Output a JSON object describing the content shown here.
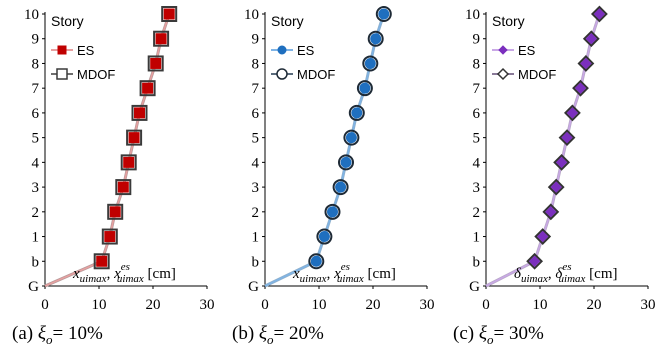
{
  "chart_data": [
    {
      "type": "line",
      "panel": "a",
      "story_label": "Story",
      "y_categories": [
        "G",
        "b",
        "1",
        "2",
        "3",
        "4",
        "5",
        "6",
        "7",
        "8",
        "9",
        "10"
      ],
      "x_ticks": [
        "0",
        "10",
        "20",
        "30"
      ],
      "xlim": [
        0,
        30
      ],
      "x_label": {
        "v1": "x",
        "s1": "uimax",
        "sep": ",",
        "v2": "x",
        "sup2": "es",
        "s2": "uimax",
        "unit": "[cm]"
      },
      "caption": {
        "prefix": "(a)",
        "sym": "ξ",
        "sub": "o",
        "eq": "=",
        "val": "10%"
      },
      "marker": "square",
      "colors": {
        "es_fill": "#C00000",
        "es_line": "#E8A0A0",
        "mdof_stroke": "#3A3A3A",
        "mdof_line": "#6E6E6E",
        "base_line": "#B89A9A"
      },
      "series": [
        {
          "name": "ES",
          "x": [
            0,
            10.5,
            12,
            13,
            14.5,
            15.5,
            16.5,
            17.5,
            19,
            20.5,
            21.5,
            23
          ]
        },
        {
          "name": "MDOF",
          "x": [
            0,
            10.5,
            12,
            13,
            14.5,
            15.5,
            16.5,
            17.5,
            19,
            20.5,
            21.5,
            23
          ]
        }
      ]
    },
    {
      "type": "line",
      "panel": "b",
      "story_label": "Story",
      "y_categories": [
        "G",
        "b",
        "1",
        "2",
        "3",
        "4",
        "5",
        "6",
        "7",
        "8",
        "9",
        "10"
      ],
      "x_ticks": [
        "0",
        "10",
        "20",
        "30"
      ],
      "xlim": [
        0,
        30
      ],
      "x_label": {
        "v1": "x",
        "s1": "uimax",
        "sep": ",",
        "v2": "x",
        "sup2": "es",
        "s2": "uimax",
        "unit": "[cm]"
      },
      "caption": {
        "prefix": "(b)",
        "sym": "ξ",
        "sub": "o",
        "eq": "=",
        "val": "20%"
      },
      "marker": "circle",
      "colors": {
        "es_fill": "#1F6FBF",
        "es_line": "#7FB4E6",
        "mdof_stroke": "#1E2A36",
        "mdof_line": "#5A6B7C",
        "base_line": "#8FB0CC"
      },
      "series": [
        {
          "name": "ES",
          "x": [
            0,
            9.5,
            11,
            12.5,
            14,
            15,
            16,
            17,
            18.5,
            19.5,
            20.5,
            22
          ]
        },
        {
          "name": "MDOF",
          "x": [
            0,
            9.5,
            11,
            12.5,
            14,
            15,
            16,
            17,
            18.5,
            19.5,
            20.5,
            22
          ]
        }
      ]
    },
    {
      "type": "line",
      "panel": "c",
      "story_label": "Story",
      "y_categories": [
        "G",
        "b",
        "1",
        "2",
        "3",
        "4",
        "5",
        "6",
        "7",
        "8",
        "9",
        "10"
      ],
      "x_ticks": [
        "0",
        "10",
        "20",
        "30"
      ],
      "xlim": [
        0,
        30
      ],
      "x_label": {
        "v1": "δ",
        "s1": "uimax",
        "sep": ",",
        "v2": "δ",
        "sup2": "es",
        "s2": "uimax",
        "unit": "[cm]"
      },
      "caption": {
        "prefix": "(c)",
        "sym": "ξ",
        "sub": "o",
        "eq": "=",
        "val": "30%"
      },
      "marker": "diamond",
      "colors": {
        "es_fill": "#7B2FBE",
        "es_line": "#C9A8E6",
        "mdof_stroke": "#333333",
        "mdof_line": "#8A7A99",
        "base_line": "#B8A8C8"
      },
      "series": [
        {
          "name": "ES",
          "x": [
            0,
            9,
            10.5,
            12,
            13,
            14,
            15,
            16,
            17.5,
            18.5,
            19.5,
            21
          ]
        },
        {
          "name": "MDOF",
          "x": [
            0,
            9,
            10.5,
            12,
            13,
            14,
            15,
            16,
            17.5,
            18.5,
            19.5,
            21
          ]
        }
      ]
    }
  ]
}
